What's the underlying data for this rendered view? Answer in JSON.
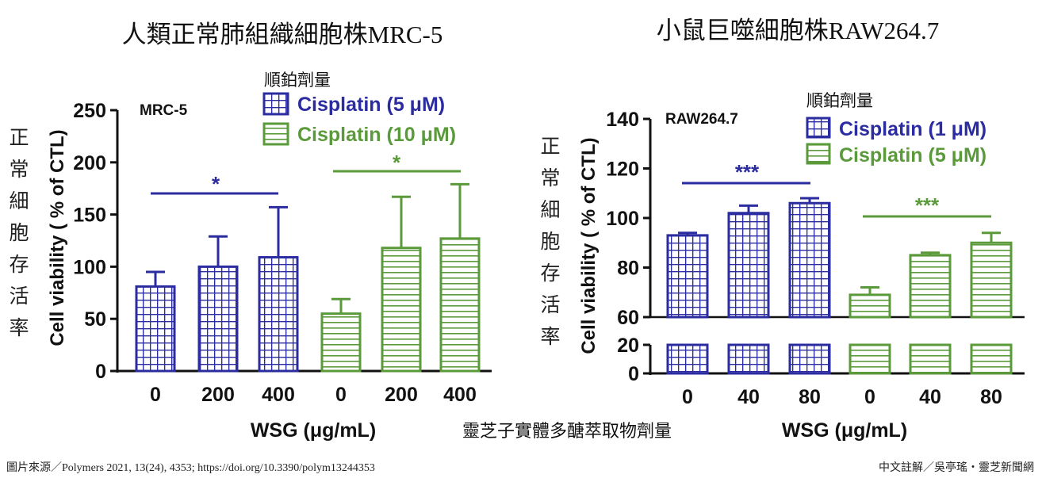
{
  "chart_data": [
    {
      "type": "bar",
      "title": "人類正常肺組織細胞株MRC-5",
      "panel_label": "MRC-5",
      "legend_title": "順鉑劑量",
      "vertical_caption": [
        "正",
        "常",
        "細",
        "胞",
        "存",
        "活",
        "率"
      ],
      "ylabel": "Cell viability ( % of CTL)",
      "xlabel": "WSG (μg/mL)",
      "ylim": [
        0,
        250
      ],
      "yticks": [
        "0",
        "50",
        "100",
        "150",
        "200",
        "250"
      ],
      "series": [
        {
          "name": "Cisplatin (5 μM)",
          "color": "#2b2ca0",
          "pattern": "grid",
          "categories": [
            "0",
            "200",
            "400"
          ],
          "values": [
            81,
            100,
            109
          ],
          "errors": [
            14,
            29,
            48
          ]
        },
        {
          "name": "Cisplatin (10 μM)",
          "color": "#5b9a3a",
          "pattern": "hlines",
          "categories": [
            "0",
            "200",
            "400"
          ],
          "values": [
            55,
            118,
            127
          ],
          "errors": [
            14,
            49,
            52
          ]
        }
      ],
      "significance": [
        "*",
        "*"
      ]
    },
    {
      "type": "bar",
      "title": "小鼠巨噬細胞株RAW264.7",
      "panel_label": "RAW264.7",
      "legend_title": "順鉑劑量",
      "vertical_caption": [
        "正",
        "常",
        "細",
        "胞",
        "存",
        "活",
        "率"
      ],
      "ylabel": "Cell viability ( % of CTL)",
      "xlabel": "WSG (μg/mL)",
      "ylim": [
        0,
        140
      ],
      "axis_break": [
        20,
        60
      ],
      "yticks": [
        "0",
        "20",
        "60",
        "80",
        "100",
        "120",
        "140"
      ],
      "series": [
        {
          "name": "Cisplatin (1 μM)",
          "color": "#2b2ca0",
          "pattern": "grid",
          "categories": [
            "0",
            "40",
            "80"
          ],
          "values": [
            93,
            102,
            106
          ],
          "errors": [
            1,
            3,
            2
          ]
        },
        {
          "name": "Cisplatin (5 μM)",
          "color": "#5b9a3a",
          "pattern": "hlines",
          "categories": [
            "0",
            "40",
            "80"
          ],
          "values": [
            69,
            85,
            90
          ],
          "errors": [
            3,
            1,
            4
          ]
        }
      ],
      "significance": [
        "***",
        "***"
      ]
    }
  ],
  "middle_caption": "靈芝子實體多醣萃取物劑量",
  "footer": {
    "source": "圖片來源／Polymers 2021, 13(24), 4353; https://doi.org/10.3390/polym13244353",
    "credit": "中文註解／吳亭瑤・靈芝新聞網"
  }
}
